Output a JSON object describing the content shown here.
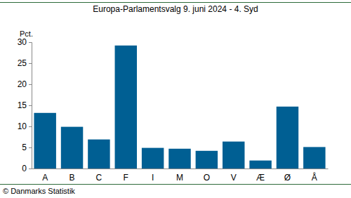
{
  "chart_data": {
    "type": "bar",
    "title": "Europa-Parlamentsvalg 9. juni 2024 - 4. Syd",
    "ylabel": "Pct.",
    "source": "© Danmarks Statistik",
    "categories": [
      "A",
      "B",
      "C",
      "F",
      "I",
      "M",
      "O",
      "V",
      "Æ",
      "Ø",
      "Å"
    ],
    "values": [
      13.2,
      9.9,
      6.9,
      29.2,
      4.9,
      4.7,
      4.2,
      6.4,
      1.9,
      14.7,
      5.1
    ],
    "color": "#005f93",
    "ylim": [
      0,
      30
    ],
    "yticks": [
      0,
      5,
      10,
      15,
      20,
      25,
      30
    ],
    "grid": false
  }
}
